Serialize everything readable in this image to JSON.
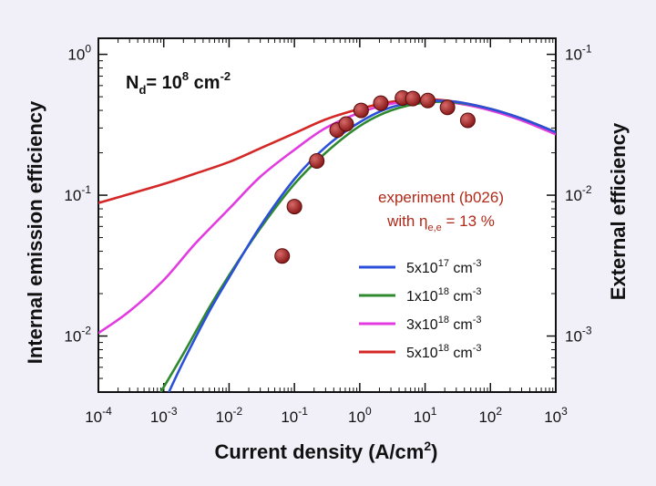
{
  "chart_data": {
    "type": "scatter",
    "xlabel": "Current density (A/cm",
    "xlabel_sup": "2",
    "xlabel_tail": ")",
    "ylabel": "Internal emission efficiency",
    "y2label": "External efficiency",
    "x_scale": "log",
    "y_scale": "log",
    "xlim": [
      0.0001,
      1000
    ],
    "ylim": [
      0.004,
      1.3
    ],
    "y2lim": [
      0.0004,
      0.13
    ],
    "x_ticks": [
      {
        "value": 0.0001,
        "base": "10",
        "exp": "-4"
      },
      {
        "value": 0.001,
        "base": "10",
        "exp": "-3"
      },
      {
        "value": 0.01,
        "base": "10",
        "exp": "-2"
      },
      {
        "value": 0.1,
        "base": "10",
        "exp": "-1"
      },
      {
        "value": 1,
        "base": "10",
        "exp": "0"
      },
      {
        "value": 10,
        "base": "10",
        "exp": "1"
      },
      {
        "value": 100,
        "base": "10",
        "exp": "2"
      },
      {
        "value": 1000,
        "base": "10",
        "exp": "3"
      }
    ],
    "y_ticks": [
      {
        "value": 1,
        "base": "10",
        "exp": "0"
      },
      {
        "value": 0.1,
        "base": "10",
        "exp": "-1"
      },
      {
        "value": 0.01,
        "base": "10",
        "exp": "-2"
      }
    ],
    "y2_ticks": [
      {
        "value": 0.1,
        "base": "10",
        "exp": "-1"
      },
      {
        "value": 0.01,
        "base": "10",
        "exp": "-2"
      },
      {
        "value": 0.001,
        "base": "10",
        "exp": "-3"
      }
    ],
    "annotation": {
      "nd_label": "N",
      "nd_sub": "d",
      "nd_mid": "= 10",
      "nd_exp": "8",
      "nd_unit": " cm",
      "nd_unit_exp": "-2",
      "experiment_line1": "experiment (b026)",
      "experiment_line2_a": "with  η",
      "experiment_line2_sub": "e,e",
      "experiment_line2_b": " = 13 %"
    },
    "experiment": {
      "name": "experiment (b026)",
      "color": "#8b1a1a",
      "x": [
        0.065,
        0.1,
        0.22,
        0.45,
        0.62,
        1.05,
        2.1,
        4.5,
        6.5,
        11,
        22,
        45
      ],
      "y": [
        0.037,
        0.083,
        0.175,
        0.29,
        0.32,
        0.4,
        0.45,
        0.49,
        0.485,
        0.47,
        0.42,
        0.34
      ]
    },
    "series": [
      {
        "name_base": "5x10",
        "name_exp": "17",
        "name_unit": " cm",
        "name_unit_exp": "-3",
        "color": "#2b4fd8",
        "x": [
          0.0012,
          0.002,
          0.005,
          0.01,
          0.03,
          0.1,
          0.3,
          1,
          3,
          10,
          30,
          100,
          300,
          1000
        ],
        "y": [
          0.004,
          0.0066,
          0.015,
          0.026,
          0.06,
          0.13,
          0.22,
          0.33,
          0.42,
          0.465,
          0.46,
          0.41,
          0.35,
          0.28
        ]
      },
      {
        "name_base": "1x10",
        "name_exp": "18",
        "name_unit": " cm",
        "name_unit_exp": "-3",
        "color": "#2f8a2f",
        "x": [
          0.0009,
          0.002,
          0.005,
          0.01,
          0.03,
          0.1,
          0.3,
          1,
          3,
          10,
          30,
          100,
          300,
          1000
        ],
        "y": [
          0.004,
          0.0075,
          0.016,
          0.027,
          0.058,
          0.12,
          0.2,
          0.31,
          0.4,
          0.455,
          0.455,
          0.41,
          0.35,
          0.28
        ]
      },
      {
        "name_base": "3x10",
        "name_exp": "18",
        "name_unit": " cm",
        "name_unit_exp": "-3",
        "color": "#e23be0",
        "x": [
          0.0001,
          0.0003,
          0.001,
          0.003,
          0.01,
          0.03,
          0.1,
          0.3,
          1,
          3,
          10,
          30,
          100,
          300,
          1000
        ],
        "y": [
          0.0105,
          0.015,
          0.025,
          0.045,
          0.08,
          0.135,
          0.21,
          0.3,
          0.385,
          0.445,
          0.465,
          0.45,
          0.4,
          0.34,
          0.27
        ]
      },
      {
        "name_base": "5x10",
        "name_exp": "18",
        "name_unit": " cm",
        "name_unit_exp": "-3",
        "color": "#d42828",
        "x": [
          0.0001,
          0.0003,
          0.001,
          0.003,
          0.01,
          0.03,
          0.1,
          0.3,
          1,
          3,
          10,
          30,
          100,
          300,
          1000
        ],
        "y": [
          0.088,
          0.102,
          0.12,
          0.142,
          0.172,
          0.215,
          0.275,
          0.345,
          0.41,
          0.46,
          0.48,
          0.46,
          0.41,
          0.35,
          0.28
        ]
      }
    ]
  }
}
